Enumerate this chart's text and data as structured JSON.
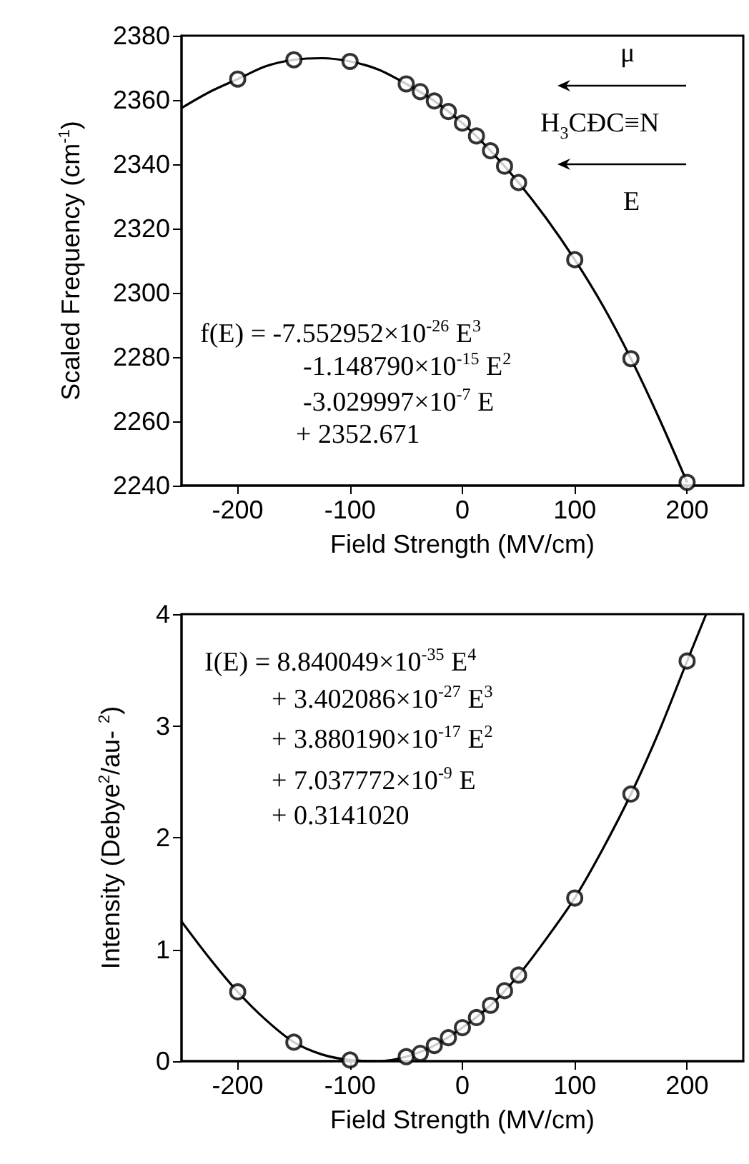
{
  "chart_data": [
    {
      "type": "scatter",
      "xlabel": "Field Strength (MV/cm)",
      "ylabel": "Scaled Frequency (cm$^{-1}$)",
      "xlim": [
        -250,
        250
      ],
      "xticks": [
        -200,
        -100,
        0,
        100,
        200
      ],
      "ylim": [
        2240,
        2380
      ],
      "yticks": [
        2240,
        2260,
        2280,
        2300,
        2320,
        2340,
        2360,
        2380
      ],
      "grid": false,
      "marker": "circle",
      "annotations": [
        "f(E) = -7.552952×10$^{-26}$ E$^{3}$",
        "-1.148790×10$^{-15}$ E$^{2}$",
        "-3.029997×10$^{-7}$ E",
        "+ 2352.671",
        "μ⃗",
        "H$_{3}$CÐC≡N",
        "E⃗"
      ],
      "series": [
        {
          "type": "scatter",
          "color": "#000000",
          "x": [
            -200,
            -150,
            -100,
            -50,
            -37.5,
            -25,
            -12.5,
            0,
            12.5,
            25,
            37.5,
            50,
            100,
            150,
            200
          ],
          "values": [
            2366.5,
            2372.5,
            2372,
            2365,
            2362.6,
            2359.7,
            2356.4,
            2352.8,
            2348.8,
            2344.2,
            2339.4,
            2334.3,
            2310.3,
            2279.5,
            2241
          ]
        },
        {
          "type": "line",
          "marker": "none",
          "color": "#000000",
          "x": [
            -250,
            -225,
            -200,
            -175,
            -150,
            -125,
            -100,
            -75,
            -50,
            -25,
            0,
            25,
            50,
            75,
            100,
            125,
            150,
            175,
            200
          ],
          "values": [
            2357.5,
            2362.5,
            2366.5,
            2370.5,
            2372.5,
            2373,
            2372,
            2369.5,
            2365,
            2359.7,
            2352.8,
            2344.2,
            2334.3,
            2323,
            2310.3,
            2296,
            2279.5,
            2261,
            2241
          ]
        }
      ]
    },
    {
      "type": "scatter",
      "xlabel": "Field Strength (MV/cm)",
      "ylabel": "Intensity (Debye$^{2}$/au- $^{2}$)",
      "xlim": [
        -250,
        250
      ],
      "xticks": [
        -200,
        -100,
        0,
        100,
        200
      ],
      "ylim": [
        0,
        4
      ],
      "yticks": [
        0,
        1,
        2,
        3,
        4
      ],
      "grid": false,
      "marker": "circle",
      "annotations": [
        "I(E) = 8.840049×10$^{-35}$ E$^{4}$",
        "+ 3.402086×10$^{-27}$ E$^{3}$",
        "+ 3.880190×10$^{-17}$ E$^{2}$",
        "+ 7.037772×10$^{-9}$ E",
        "+ 0.3141020"
      ],
      "series": [
        {
          "type": "scatter",
          "color": "#000000",
          "x": [
            -200,
            -150,
            -100,
            -50,
            -37.5,
            -25,
            -12.5,
            0,
            12.5,
            25,
            37.5,
            50,
            100,
            150,
            200
          ],
          "values": [
            0.62,
            0.17,
            0.01,
            0.04,
            0.07,
            0.14,
            0.21,
            0.3,
            0.39,
            0.5,
            0.63,
            0.77,
            1.46,
            2.39,
            3.58
          ]
        },
        {
          "type": "line",
          "marker": "none",
          "color": "#000000",
          "x": [
            -250,
            -225,
            -200,
            -175,
            -150,
            -125,
            -100,
            -75,
            -50,
            -25,
            0,
            25,
            50,
            75,
            100,
            125,
            150,
            175,
            200,
            217
          ],
          "values": [
            1.25,
            0.92,
            0.62,
            0.37,
            0.17,
            0.06,
            0.01,
            0,
            0.04,
            0.14,
            0.3,
            0.5,
            0.77,
            1.1,
            1.46,
            1.9,
            2.39,
            2.95,
            3.58,
            4
          ]
        }
      ]
    }
  ]
}
